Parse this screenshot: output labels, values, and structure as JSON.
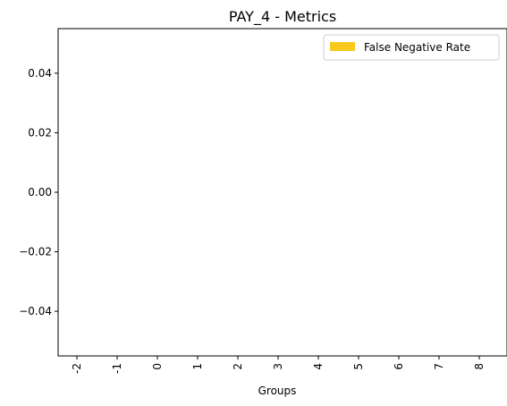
{
  "chart_data": {
    "type": "bar",
    "title": "PAY_4 - Metrics",
    "xlabel": "Groups",
    "ylabel": "",
    "categories": [
      "-2",
      "-1",
      "0",
      "1",
      "2",
      "3",
      "4",
      "5",
      "6",
      "7",
      "8"
    ],
    "series": [
      {
        "name": "False Negative Rate",
        "color": "#F9C81D",
        "values": [
          null,
          null,
          null,
          null,
          null,
          null,
          null,
          null,
          null,
          null,
          null
        ]
      }
    ],
    "ylim": [
      -0.055,
      0.055
    ],
    "yticks": [
      "0.04",
      "0.02",
      "0.00",
      "−0.02",
      "−0.04"
    ],
    "ytick_values": [
      0.04,
      0.02,
      0.0,
      -0.02,
      -0.04
    ],
    "legend_position": "top-right",
    "grid": false
  }
}
